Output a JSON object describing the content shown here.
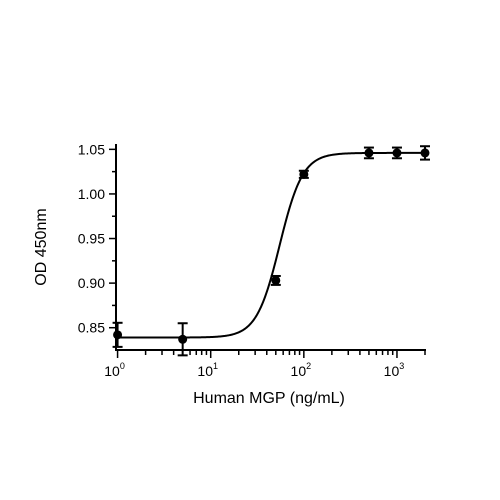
{
  "chart_data": {
    "type": "scatter",
    "xlabel": "Human MGP (ng/mL)",
    "ylabel": "OD 450nm",
    "xscale": "log",
    "xlim": [
      0.85,
      2000
    ],
    "ylim": [
      0.825,
      1.056
    ],
    "yticks": [
      0.85,
      0.9,
      0.95,
      1.0,
      1.05
    ],
    "ytick_labels": [
      "0.85",
      "0.90",
      "0.95",
      "1.00",
      "1.05"
    ],
    "xticks": [
      {
        "base": "10",
        "exp": "0"
      },
      {
        "base": "10",
        "exp": "1"
      },
      {
        "base": "10",
        "exp": "2"
      },
      {
        "base": "10",
        "exp": "3"
      }
    ],
    "points": [
      {
        "x": 1,
        "y": 0.842,
        "err": 0.0135
      },
      {
        "x": 5,
        "y": 0.837,
        "err": 0.018
      },
      {
        "x": 50,
        "y": 0.903,
        "err": 0.005
      },
      {
        "x": 100,
        "y": 1.022,
        "err": 0.004
      },
      {
        "x": 500,
        "y": 1.046,
        "err": 0.006
      },
      {
        "x": 1000,
        "y": 1.046,
        "err": 0.006
      },
      {
        "x": 2000,
        "y": 1.046,
        "err": 0.0075
      }
    ],
    "fit": {
      "model": "4PL",
      "bottom": 0.839,
      "top": 1.046,
      "ec50": 55,
      "hill": 3.5
    },
    "grid": false,
    "legend": "none"
  }
}
